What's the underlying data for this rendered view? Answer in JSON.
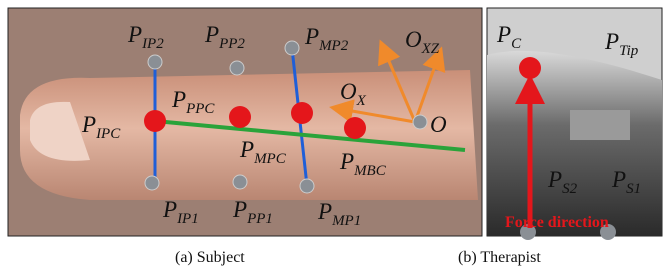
{
  "figure": {
    "subject_labels": [
      {
        "base": "P",
        "sub": "IP2"
      },
      {
        "base": "P",
        "sub": "PP2"
      },
      {
        "base": "P",
        "sub": "MP2"
      },
      {
        "base": "O",
        "sub": "XZ"
      },
      {
        "base": "O",
        "sub": "X"
      },
      {
        "base": "P",
        "sub": "PPC"
      },
      {
        "base": "P",
        "sub": "IPC"
      },
      {
        "base": "O"
      },
      {
        "base": "P",
        "sub": "MPC"
      },
      {
        "base": "P",
        "sub": "MBC"
      },
      {
        "base": "P",
        "sub": "IP1"
      },
      {
        "base": "P",
        "sub": "PP1"
      },
      {
        "base": "P",
        "sub": "MP1"
      }
    ],
    "therapist_labels": [
      {
        "base": "P",
        "sub": "C"
      },
      {
        "base": "P",
        "sub": "Tip"
      },
      {
        "base": "P",
        "sub": "S2"
      },
      {
        "base": "P",
        "sub": "S1"
      }
    ],
    "force_label": "Force direction",
    "captions": [
      "(a) Subject",
      "(b) Therapist"
    ]
  }
}
